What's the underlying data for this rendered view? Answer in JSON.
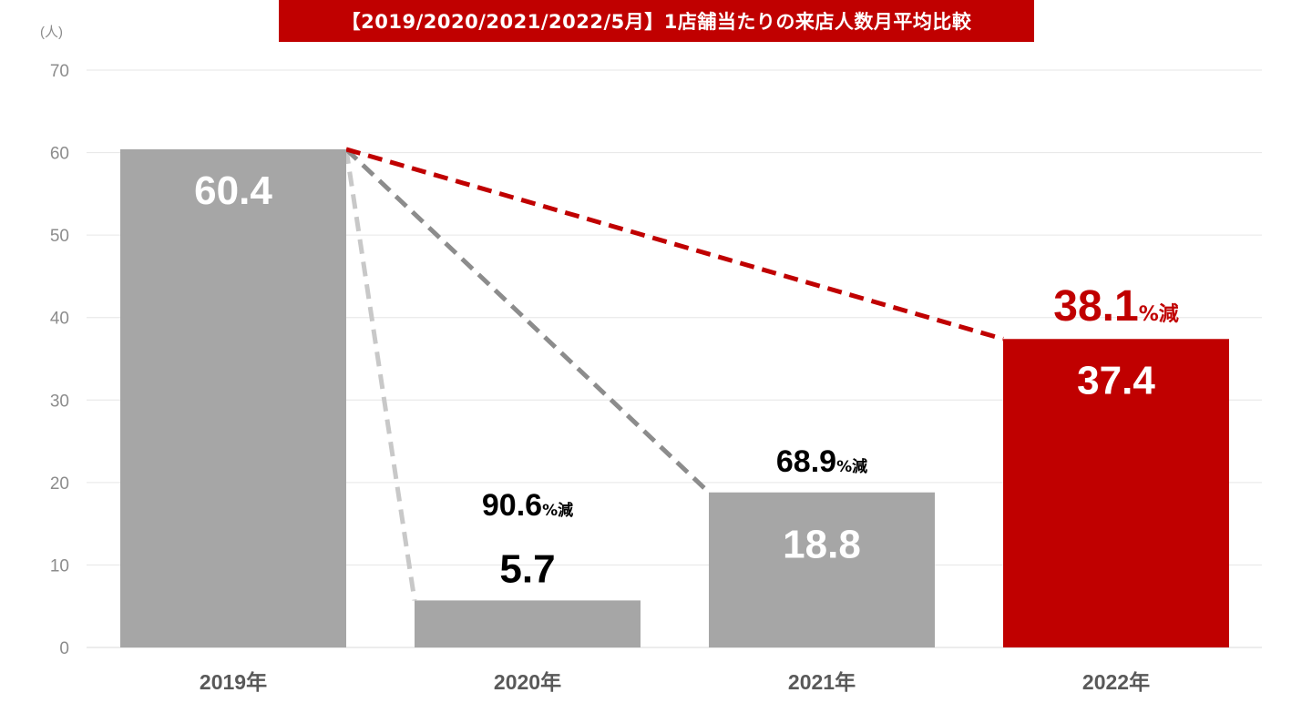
{
  "chart_data": {
    "type": "bar",
    "title": "【2019/2020/2021/2022/5月】1店舗当たりの来店人数月平均比較",
    "ylabel": "(人)",
    "ylim": [
      0,
      70
    ],
    "yticks": [
      0,
      10,
      20,
      30,
      40,
      50,
      60,
      70
    ],
    "grid": true,
    "categories": [
      "2019年",
      "2020年",
      "2021年",
      "2022年"
    ],
    "values": [
      60.4,
      5.7,
      18.8,
      37.4
    ],
    "value_labels": [
      "60.4",
      "5.7",
      "18.8",
      "37.4"
    ],
    "bar_colors": [
      "#a6a6a6",
      "#a6a6a6",
      "#a6a6a6",
      "#c00000"
    ],
    "annotations": [
      {
        "category": "2020年",
        "value": "90.6",
        "unit": "%減",
        "color": "#000000"
      },
      {
        "category": "2021年",
        "value": "68.9",
        "unit": "%減",
        "color": "#000000"
      },
      {
        "category": "2022年",
        "value": "38.1",
        "unit": "%減",
        "color": "#c00000"
      }
    ],
    "comparison_lines": [
      {
        "from": "2019年",
        "to": "2020年",
        "color": "#c8c8c8"
      },
      {
        "from": "2019年",
        "to": "2021年",
        "color": "#8c8c8c"
      },
      {
        "from": "2019年",
        "to": "2022年",
        "color": "#c00000"
      }
    ]
  },
  "colors": {
    "accent": "#c00000",
    "bar_gray": "#a6a6a6",
    "grid": "#e6e6e6",
    "axis_text": "#8c8c8c"
  }
}
